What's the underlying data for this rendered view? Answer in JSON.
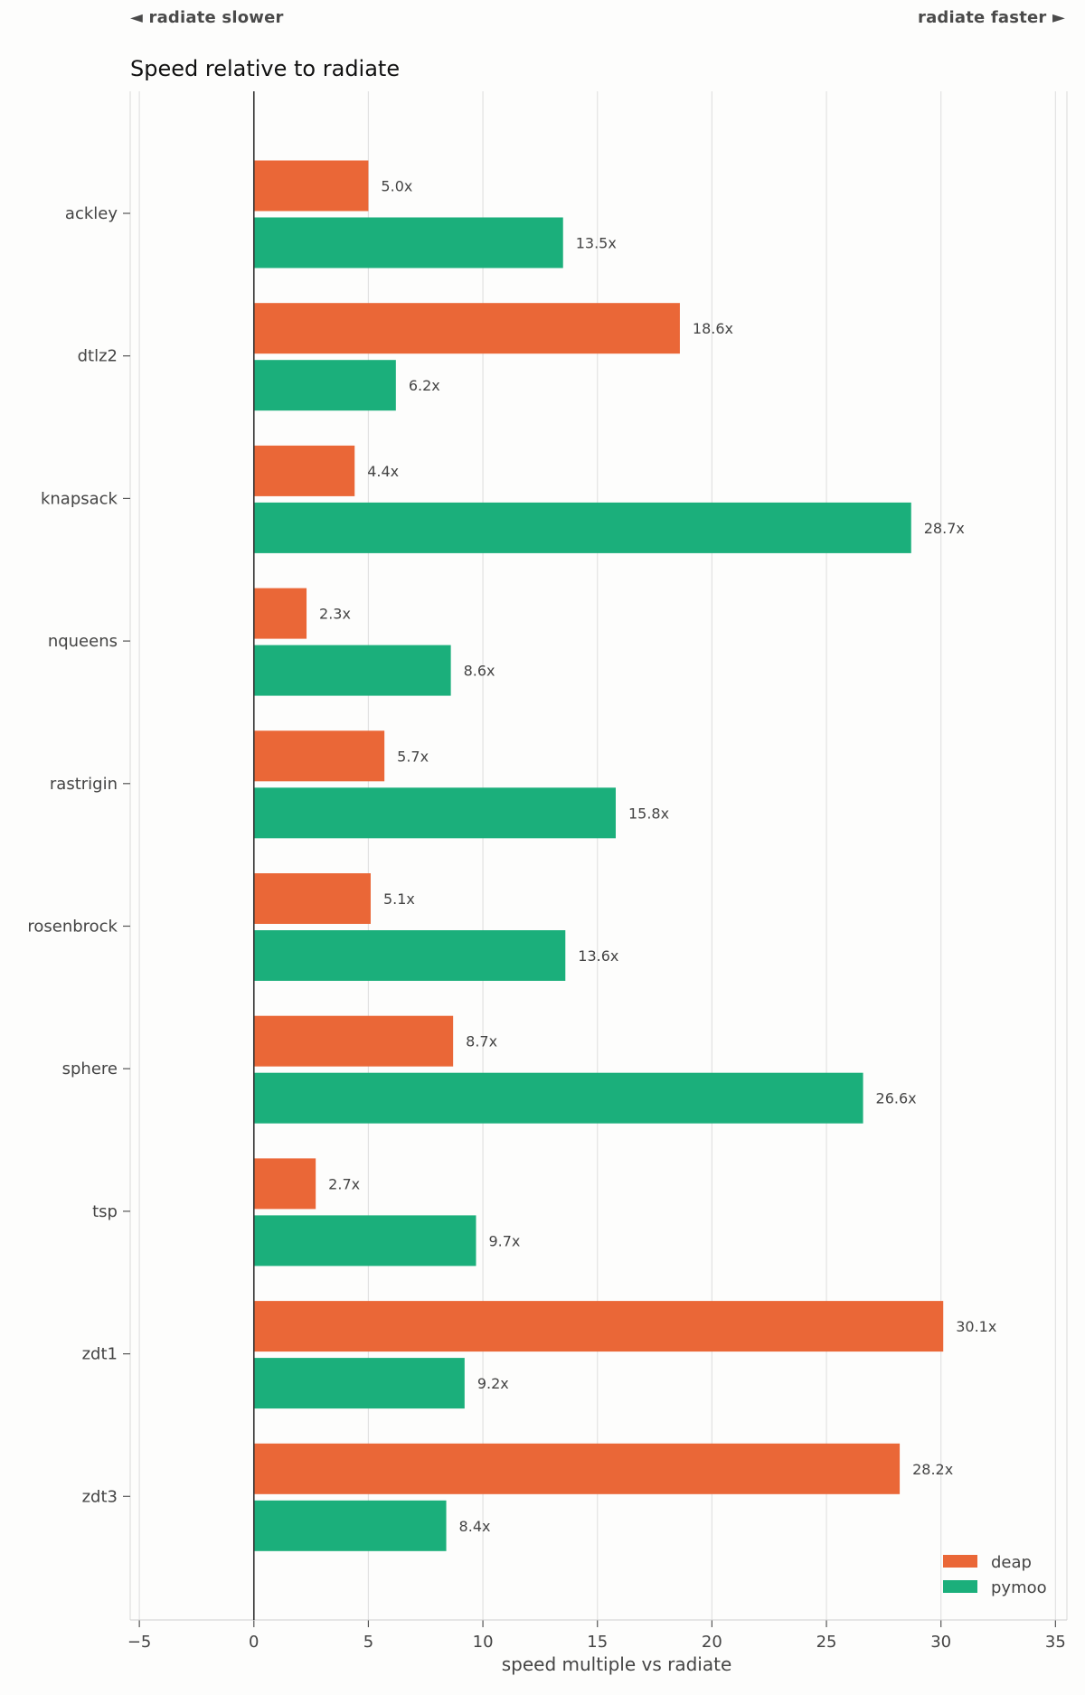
{
  "header": {
    "left_label": "◄ radiate slower",
    "right_label": "radiate faster ►"
  },
  "chart_data": {
    "type": "bar",
    "orientation": "horizontal",
    "title": "Speed relative to radiate",
    "xlabel": "speed multiple vs radiate",
    "ylabel": "",
    "categories": [
      "ackley",
      "dtlz2",
      "knapsack",
      "nqueens",
      "rastrigin",
      "rosenbrock",
      "sphere",
      "tsp",
      "zdt1",
      "zdt3"
    ],
    "series": [
      {
        "name": "deap",
        "color": "#ea6737",
        "values": [
          5.0,
          18.6,
          4.4,
          2.3,
          5.7,
          5.1,
          8.7,
          2.7,
          30.1,
          28.2
        ],
        "labels": [
          "5.0x",
          "18.6x",
          "4.4x",
          "2.3x",
          "5.7x",
          "5.1x",
          "8.7x",
          "2.7x",
          "30.1x",
          "28.2x"
        ]
      },
      {
        "name": "pymoo",
        "color": "#1baf7b",
        "values": [
          13.5,
          6.2,
          28.7,
          8.6,
          15.8,
          13.6,
          26.6,
          9.7,
          9.2,
          8.4
        ],
        "labels": [
          "13.5x",
          "6.2x",
          "28.7x",
          "8.6x",
          "15.8x",
          "13.6x",
          "26.6x",
          "9.7x",
          "9.2x",
          "8.4x"
        ]
      }
    ],
    "xlim": [
      -5.4,
      35.5
    ],
    "xticks": [
      -5,
      0,
      5,
      10,
      15,
      20,
      25,
      30,
      35
    ],
    "xtick_labels": [
      "−5",
      "0",
      "5",
      "10",
      "15",
      "20",
      "25",
      "30",
      "35"
    ],
    "grid": "vertical",
    "legend": "bottom-right"
  }
}
